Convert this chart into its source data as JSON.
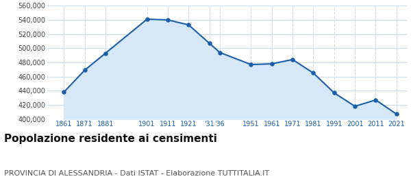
{
  "years": [
    1861,
    1871,
    1881,
    1901,
    1911,
    1921,
    1931,
    1936,
    1951,
    1961,
    1971,
    1981,
    1991,
    2001,
    2011,
    2021
  ],
  "population": [
    438000,
    469000,
    493000,
    541000,
    540000,
    533000,
    507000,
    494000,
    477000,
    478000,
    484000,
    465000,
    437000,
    418000,
    427000,
    407000
  ],
  "line_color": "#1a5fa8",
  "fill_color": "#d6e8f7",
  "marker_color": "#1a5fa8",
  "grid_color": "#d0dce8",
  "background_color": "#ffffff",
  "title": "Popolazione residente ai censimenti",
  "subtitle": "PROVINCIA DI ALESSANDRIA - Dati ISTAT - Elaborazione TUTTITALIA.IT",
  "title_fontsize": 11,
  "subtitle_fontsize": 8,
  "ylim": [
    400000,
    560000
  ],
  "ytick_step": 20000
}
